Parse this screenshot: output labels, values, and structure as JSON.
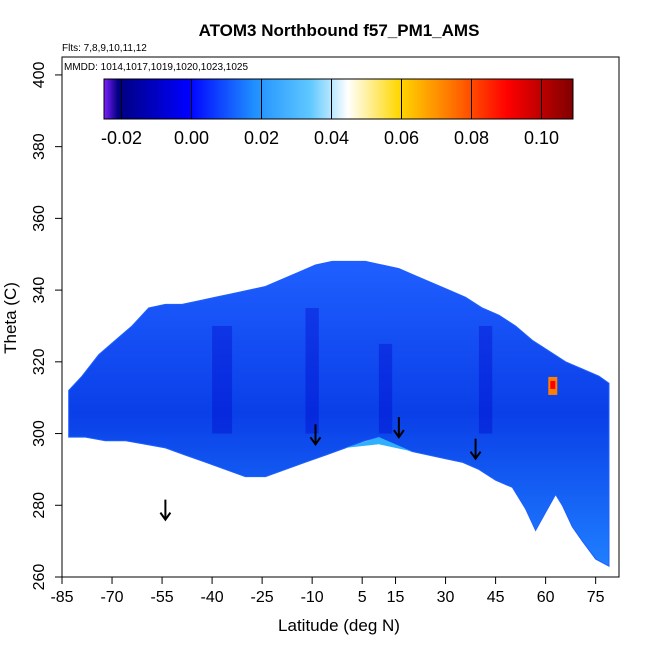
{
  "chart_data": {
    "type": "heatmap",
    "title": "ATOM3 Northbound f57_PM1_AMS",
    "annotations": {
      "flights": "Flts: 7,8,9,10,11,12",
      "dates": "MMDD: 1014,1017,1019,1020,1023,1025"
    },
    "xlabel": "Latitude (deg N)",
    "ylabel": "Theta (C)",
    "xlim": [
      -85,
      82
    ],
    "ylim": [
      260,
      405
    ],
    "x_ticks": [
      -85,
      -70,
      -55,
      -40,
      -25,
      -10,
      5,
      15,
      30,
      45,
      60,
      75
    ],
    "y_ticks": [
      260,
      280,
      300,
      320,
      340,
      360,
      380,
      400
    ],
    "colorbar": {
      "ticks": [
        "-0.02",
        "0.00",
        "0.02",
        "0.04",
        "0.06",
        "0.08",
        "0.10"
      ],
      "range": [
        -0.025,
        0.109
      ],
      "colors": [
        "#7f1fff",
        "#00007f",
        "#0000ff",
        "#1f8fff",
        "#5fc8ff",
        "#ffffff",
        "#ffd700",
        "#ff7f00",
        "#ff0000",
        "#7f0000"
      ]
    },
    "field_boundary": {
      "upper": [
        [
          -83,
          312
        ],
        [
          -79,
          316
        ],
        [
          -74,
          322
        ],
        [
          -69,
          326
        ],
        [
          -64,
          330
        ],
        [
          -59,
          335
        ],
        [
          -54,
          336
        ],
        [
          -49,
          336
        ],
        [
          -44,
          337
        ],
        [
          -39,
          338
        ],
        [
          -34,
          339
        ],
        [
          -29,
          340
        ],
        [
          -24,
          341
        ],
        [
          -19,
          343
        ],
        [
          -14,
          345
        ],
        [
          -9,
          347
        ],
        [
          -4,
          348
        ],
        [
          1,
          348
        ],
        [
          6,
          348
        ],
        [
          11,
          347
        ],
        [
          16,
          346
        ],
        [
          21,
          344
        ],
        [
          26,
          342
        ],
        [
          31,
          340
        ],
        [
          36,
          338
        ],
        [
          41,
          335
        ],
        [
          46,
          333
        ],
        [
          51,
          330
        ],
        [
          56,
          326
        ],
        [
          61,
          323
        ],
        [
          66,
          320
        ],
        [
          71,
          318
        ],
        [
          76,
          316
        ],
        [
          79,
          314
        ]
      ],
      "lower": [
        [
          79,
          263
        ],
        [
          75,
          265
        ],
        [
          71,
          270
        ],
        [
          68,
          274
        ],
        [
          65,
          280
        ],
        [
          63,
          283
        ],
        [
          60,
          278
        ],
        [
          57,
          273
        ],
        [
          54,
          279
        ],
        [
          50,
          285
        ],
        [
          45,
          287
        ],
        [
          40,
          290
        ],
        [
          35,
          292
        ],
        [
          30,
          293
        ],
        [
          25,
          294
        ],
        [
          20,
          295
        ],
        [
          14,
          297
        ],
        [
          10,
          299
        ],
        [
          6,
          298
        ],
        [
          0,
          296
        ],
        [
          -6,
          294
        ],
        [
          -12,
          292
        ],
        [
          -18,
          290
        ],
        [
          -24,
          288
        ],
        [
          -30,
          288
        ],
        [
          -36,
          290
        ],
        [
          -42,
          292
        ],
        [
          -48,
          294
        ],
        [
          -54,
          296
        ],
        [
          -60,
          297
        ],
        [
          -66,
          298
        ],
        [
          -72,
          298
        ],
        [
          -78,
          299
        ],
        [
          -83,
          299
        ]
      ]
    },
    "values_summary": {
      "typical_range": [
        -0.02,
        0.02
      ],
      "max_value": 0.09,
      "max_location": {
        "latitude": 62,
        "theta": 313
      }
    },
    "arrows": [
      {
        "latitude": -54,
        "theta": 276
      },
      {
        "latitude": -9,
        "theta": 297
      },
      {
        "latitude": 16,
        "theta": 299
      },
      {
        "latitude": 39,
        "theta": 293
      }
    ]
  }
}
